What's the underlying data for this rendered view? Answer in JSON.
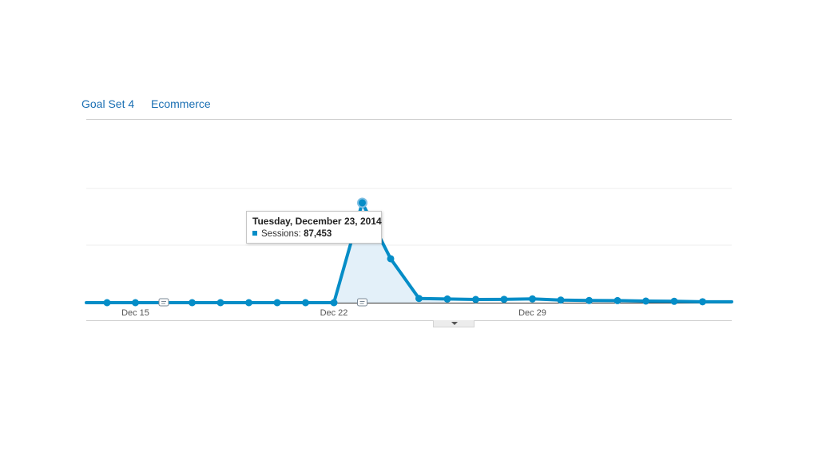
{
  "tabs": [
    {
      "label": "Goal Set 4"
    },
    {
      "label": "Ecommerce"
    }
  ],
  "tooltip": {
    "date": "Tuesday, December 23, 2014",
    "metric_label": "Sessions:",
    "metric_value": "87,453"
  },
  "colors": {
    "series": "#058dc7",
    "area_fill": "#e3f0f9",
    "grid": "#ececec",
    "axis": "#333333",
    "tab_text": "#1a6fb3"
  },
  "chart_data": {
    "type": "line",
    "title": "",
    "xlabel": "",
    "ylabel": "",
    "x": [
      "2014-12-14",
      "2014-12-15",
      "2014-12-16",
      "2014-12-17",
      "2014-12-18",
      "2014-12-19",
      "2014-12-20",
      "2014-12-21",
      "2014-12-22",
      "2014-12-23",
      "2014-12-24",
      "2014-12-25",
      "2014-12-26",
      "2014-12-27",
      "2014-12-28",
      "2014-12-29",
      "2014-12-30",
      "2014-12-31",
      "2015-01-01",
      "2015-01-02",
      "2015-01-03",
      "2015-01-04"
    ],
    "x_tick_labels": [
      {
        "x": "2014-12-15",
        "label": "Dec 15"
      },
      {
        "x": "2014-12-22",
        "label": "Dec 22"
      },
      {
        "x": "2014-12-29",
        "label": "Dec 29"
      }
    ],
    "series": [
      {
        "values": [
          0,
          0,
          0,
          0,
          0,
          0,
          0,
          0,
          0,
          87453,
          38500,
          3700,
          3200,
          2800,
          2900,
          3300,
          2300,
          1900,
          1800,
          1400,
          1200,
          800
        ]
      }
    ],
    "ylim": [
      0,
      100000
    ],
    "grid": true,
    "annotations": [
      {
        "x": "2014-12-16"
      },
      {
        "x": "2014-12-23"
      }
    ],
    "highlight_index": 9,
    "fill_range": [
      8,
      12
    ]
  }
}
